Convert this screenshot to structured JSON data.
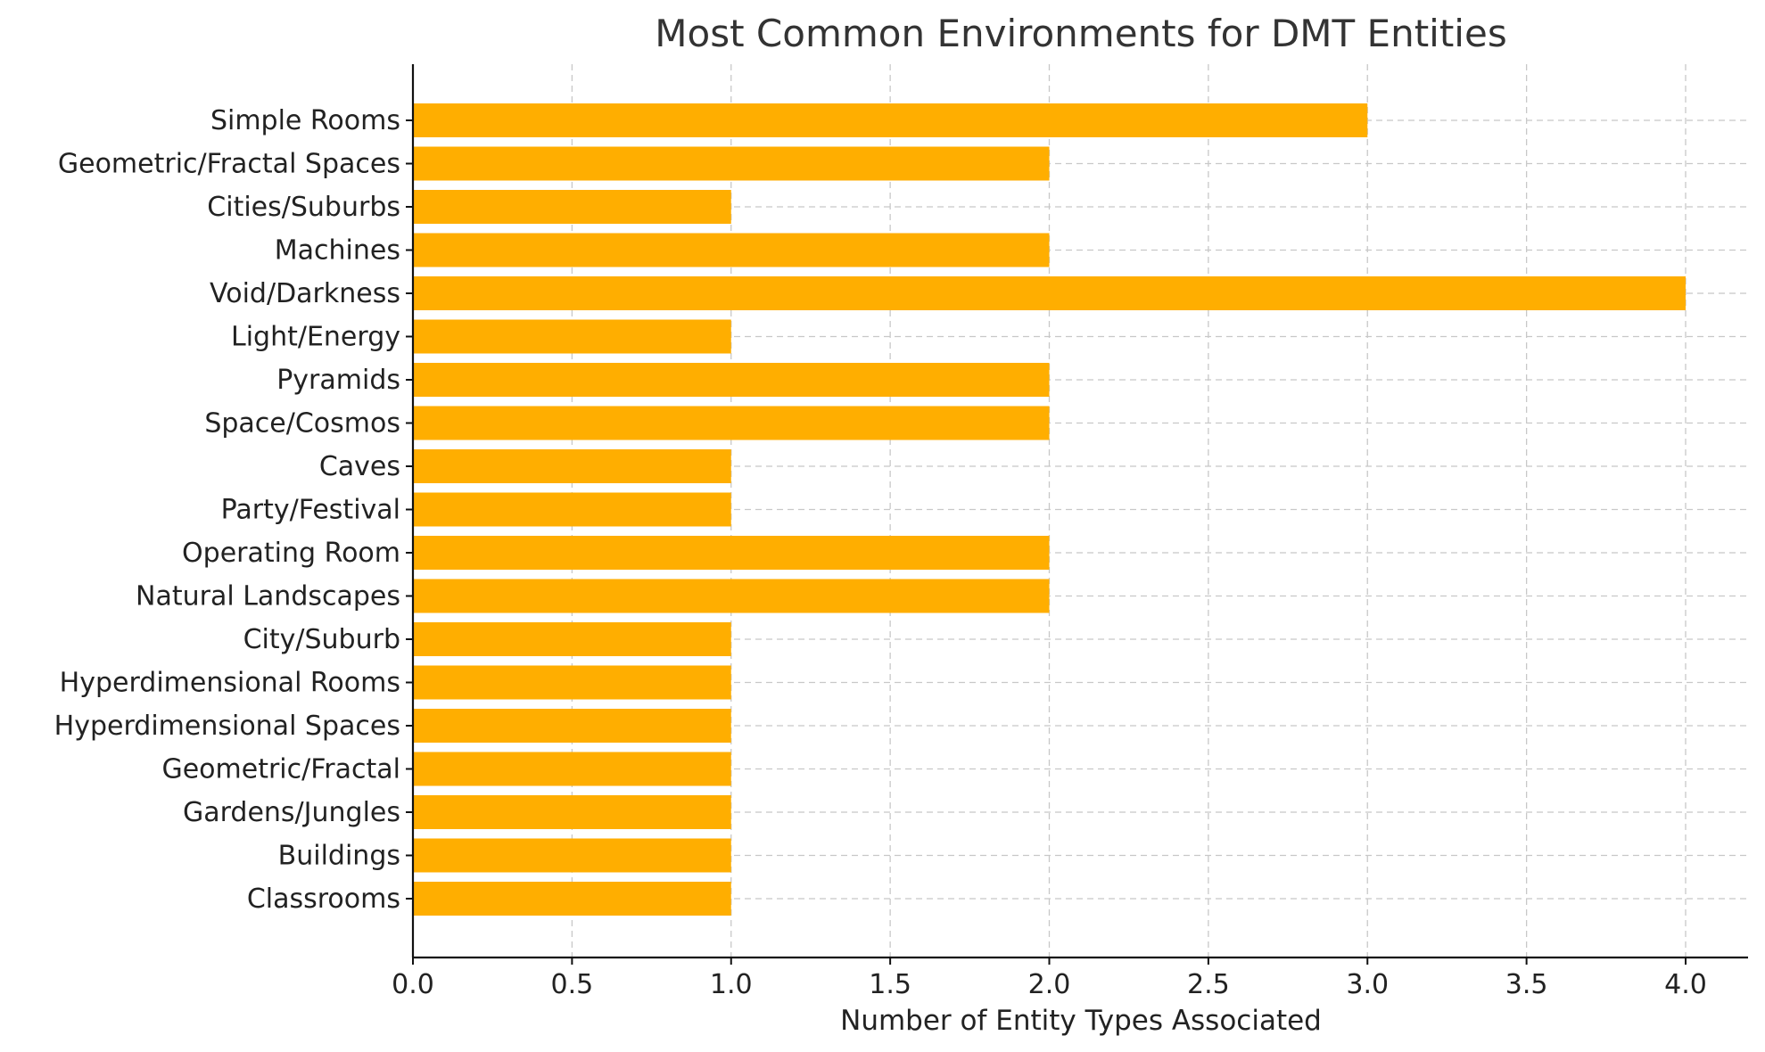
{
  "chart_data": {
    "type": "bar",
    "orientation": "horizontal",
    "title": "Most Common Environments for DMT Entities",
    "xlabel": "Number of Entity Types Associated",
    "ylabel": "",
    "xlim": [
      0,
      4.2
    ],
    "xticks": [
      0.0,
      0.5,
      1.0,
      1.5,
      2.0,
      2.5,
      3.0,
      3.5,
      4.0
    ],
    "xtick_labels": [
      "0.0",
      "0.5",
      "1.0",
      "1.5",
      "2.0",
      "2.5",
      "3.0",
      "3.5",
      "4.0"
    ],
    "grid": true,
    "bar_color": "#FFAE00",
    "categories": [
      "Simple Rooms",
      "Geometric/Fractal Spaces",
      "Cities/Suburbs",
      "Machines",
      "Void/Darkness",
      "Light/Energy",
      "Pyramids",
      "Space/Cosmos",
      "Caves",
      "Party/Festival",
      "Operating Room",
      "Natural Landscapes",
      "City/Suburb",
      "Hyperdimensional Rooms",
      "Hyperdimensional Spaces",
      "Geometric/Fractal",
      "Gardens/Jungles",
      "Buildings",
      "Classrooms"
    ],
    "values": [
      3,
      2,
      1,
      2,
      4,
      1,
      2,
      2,
      1,
      1,
      2,
      2,
      1,
      1,
      1,
      1,
      1,
      1,
      1
    ]
  }
}
